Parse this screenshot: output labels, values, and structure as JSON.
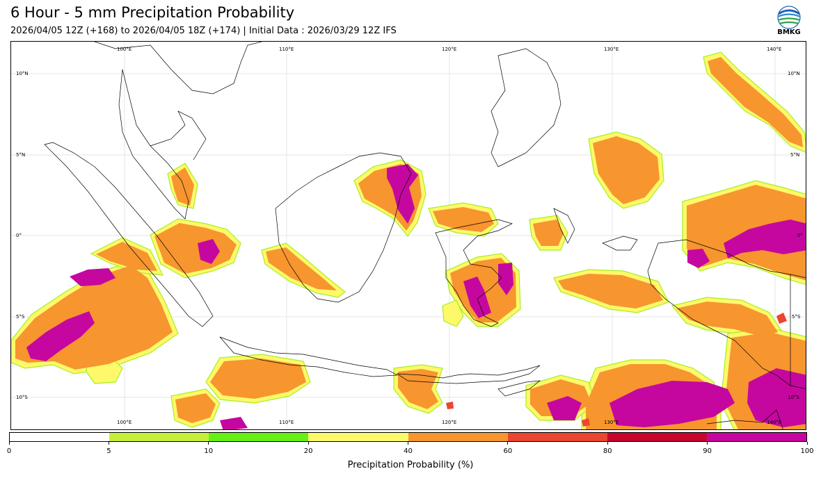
{
  "header": {
    "title": "6 Hour - 5 mm Precipitation Probability",
    "subtitle": "2026/04/05 12Z (+168) to 2026/04/05 18Z (+174) | Initial Data : 2026/03/29 12Z IFS"
  },
  "logo": {
    "text": "BMKG"
  },
  "map": {
    "lon_labels": [
      "100°E",
      "110°E",
      "120°E",
      "130°E",
      "140°E"
    ],
    "lat_labels": [
      "10°N",
      "5°N",
      "0°",
      "5°S",
      "10°S"
    ],
    "region": "Indonesia"
  },
  "colorbar": {
    "label": "Precipitation Probability (%)",
    "ticks": [
      "0",
      "5",
      "10",
      "20",
      "40",
      "60",
      "80",
      "90",
      "100"
    ],
    "colors": [
      "#ffffff",
      "#c5f03a",
      "#66f014",
      "#fdf96a",
      "#f7952f",
      "#ea4630",
      "#c7062e",
      "#c5079f"
    ]
  }
}
